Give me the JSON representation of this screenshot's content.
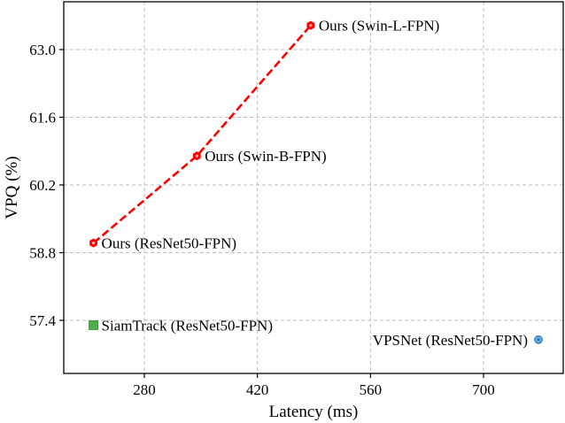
{
  "chart_data": {
    "type": "scatter",
    "title": "",
    "xlabel": "Latency (ms)",
    "ylabel": "VPQ (%)",
    "xlim": [
      180,
      800
    ],
    "ylim": [
      56.4,
      63.9
    ],
    "xticks": [
      280,
      420,
      560,
      700
    ],
    "xtick_labels": [
      "280",
      "420",
      "560",
      "700"
    ],
    "yticks": [
      57.4,
      58.8,
      60.2,
      61.6,
      63.0
    ],
    "ytick_labels": [
      "57.4",
      "58.8",
      "60.2",
      "61.6",
      "63.0"
    ],
    "grid": true,
    "legend": null,
    "series": [
      {
        "name": "Ours",
        "color": "#ff0000",
        "marker": "hexagon",
        "line": "dashed",
        "points": [
          {
            "label": "Ours (ResNet50-FPN)",
            "x": 217,
            "y": 59.0
          },
          {
            "label": "Ours (Swin-B-FPN)",
            "x": 345,
            "y": 60.8
          },
          {
            "label": "Ours (Swin-L-FPN)",
            "x": 486,
            "y": 63.5
          }
        ]
      },
      {
        "name": "SiamTrack",
        "color": "#4daf4a",
        "marker": "square",
        "line": "none",
        "points": [
          {
            "label": "SiamTrack (ResNet50-FPN)",
            "x": 217,
            "y": 57.3
          }
        ]
      },
      {
        "name": "VPSNet",
        "color": "#2b7fc0",
        "marker": "circle",
        "line": "none",
        "points": [
          {
            "label": "VPSNet (ResNet50-FPN)",
            "x": 768,
            "y": 57.0
          }
        ]
      }
    ]
  }
}
